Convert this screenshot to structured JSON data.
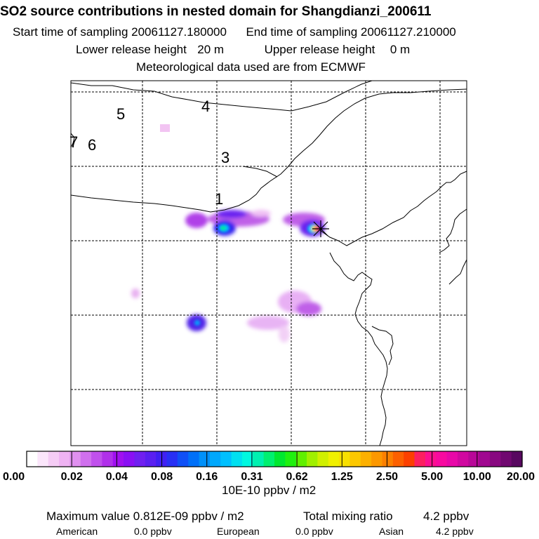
{
  "header": {
    "title": "SO2 source contributions in nested domain for Shangdianzi_200611",
    "start_label": "Start time of sampling",
    "start_value": "20061127.180000",
    "end_label": "End time of sampling",
    "end_value": "20061127.210000",
    "lower_label": "Lower release height",
    "lower_value": "20 m",
    "upper_label": "Upper release height",
    "upper_value": "0 m",
    "met_text": "Meteorological data used are from ECMWF"
  },
  "map": {
    "contour_labels": [
      "5",
      "4",
      "7",
      "6",
      "3",
      "1"
    ],
    "receptor_marker": "star-cross-marker"
  },
  "chart_data": {
    "type": "heatmap",
    "title": "SO2 source contributions in nested domain for Shangdianzi_200611",
    "colorbar_ticks": [
      "0.00",
      "0.02",
      "0.04",
      "0.08",
      "0.16",
      "0.31",
      "0.62",
      "1.25",
      "2.50",
      "5.00",
      "10.00",
      "20.00"
    ],
    "colorbar_unit": "10E-10 ppbv / m2",
    "colorbar_colors": [
      "#ffffff",
      "#fbe6fb",
      "#f5ccf5",
      "#efb3f3",
      "#e090f0",
      "#d070ee",
      "#c050ec",
      "#b030ea",
      "#a010f0",
      "#8a10f4",
      "#7020f0",
      "#5a20f0",
      "#4020f2",
      "#2830f4",
      "#1050f6",
      "#0070f8",
      "#0090fa",
      "#00a8fc",
      "#00c0fe",
      "#00e0f0",
      "#00f8e0",
      "#00f0b0",
      "#00f070",
      "#00e830",
      "#20f010",
      "#60f000",
      "#a0f000",
      "#d0f000",
      "#f0f000",
      "#f8e000",
      "#fcc800",
      "#fcb000",
      "#fc9800",
      "#fc8000",
      "#fc6000",
      "#fc4000",
      "#fc2060",
      "#fc1090",
      "#f80aa0",
      "#e808a8",
      "#d008a0",
      "#b80898",
      "#a00890",
      "#880880",
      "#700870",
      "#580860"
    ],
    "grid": true
  },
  "footer": {
    "max_label": "Maximum value",
    "max_value": "0.812E-09 ppbv / m2",
    "total_label": "Total mixing ratio",
    "total_value": "4.2 ppbv",
    "american_label": "American",
    "american_value": "0.0 ppbv",
    "european_label": "European",
    "european_value": "0.0 ppbv",
    "asian_label": "Asian",
    "asian_value": "4.2 ppbv"
  }
}
